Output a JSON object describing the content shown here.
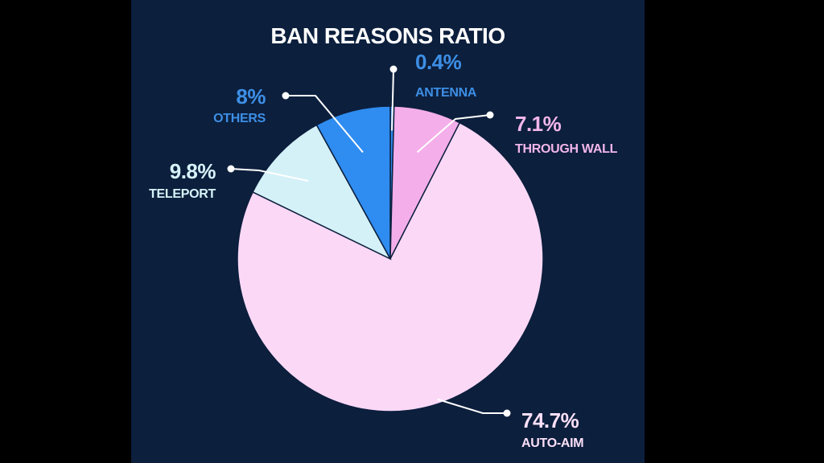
{
  "chart_data": {
    "type": "pie",
    "title": "BAN REASONS RATIO",
    "slices": [
      {
        "label": "ANTENNA",
        "value": 0.4,
        "value_label": "0.4%",
        "color": "#2f8cf0",
        "label_color": "#3d8fe6"
      },
      {
        "label": "THROUGH WALL",
        "value": 7.1,
        "value_label": "7.1%",
        "color": "#f4aeea",
        "label_color": "#f3b6ea"
      },
      {
        "label": "AUTO-AIM",
        "value": 74.7,
        "value_label": "74.7%",
        "color": "#fcd8f7",
        "label_color": "#fbe0f7"
      },
      {
        "label": "TELEPORT",
        "value": 9.8,
        "value_label": "9.8%",
        "color": "#d4f1f8",
        "label_color": "#d6f3f9"
      },
      {
        "label": "OTHERS",
        "value": 8,
        "value_label": "8%",
        "color": "#2f8cf0",
        "label_color": "#3d8fe6"
      }
    ],
    "colors": {
      "background": "#0c1f3d",
      "outer_background": "#000000",
      "slice_border": "#0c1f3d"
    }
  }
}
